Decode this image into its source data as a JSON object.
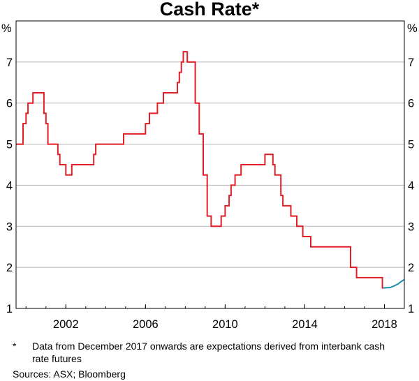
{
  "chart_data": {
    "type": "line",
    "title": "Cash Rate*",
    "ylabel_left": "%",
    "ylabel_right": "%",
    "xlim": [
      1999.5,
      2019.0
    ],
    "ylim": [
      1,
      8
    ],
    "yticks": [
      1,
      2,
      3,
      4,
      5,
      6,
      7
    ],
    "xticks": [
      2002,
      2006,
      2010,
      2014,
      2018
    ],
    "xtick_labels": [
      "2002",
      "2006",
      "2010",
      "2014",
      "2018"
    ],
    "grid": "horizontal",
    "colors": {
      "actual": "#e21e26",
      "expected": "#1c8fb0",
      "grid": "#b5b5b5"
    },
    "series": [
      {
        "name": "Cash rate",
        "style": "step",
        "x": [
          1999.5,
          1999.85,
          2000.0,
          2000.1,
          2000.2,
          2000.35,
          2000.7,
          2000.9,
          2001.0,
          2001.1,
          2001.5,
          2001.6,
          2001.7,
          2002.0,
          2002.1,
          2002.3,
          2003.4,
          2003.5,
          2004.9,
          2006.0,
          2006.2,
          2006.6,
          2006.9,
          2007.6,
          2007.7,
          2007.8,
          2007.9,
          2008.0,
          2008.1,
          2008.5,
          2008.7,
          2008.9,
          2009.1,
          2009.3,
          2009.8,
          2010.0,
          2010.2,
          2010.3,
          2010.5,
          2010.8,
          2011.0,
          2012.0,
          2012.4,
          2012.5,
          2012.8,
          2012.9,
          2013.3,
          2013.6,
          2013.9,
          2014.3,
          2016.3,
          2016.6,
          2017.9
        ],
        "y": [
          5.0,
          5.5,
          5.75,
          6.0,
          6.0,
          6.25,
          6.25,
          5.75,
          5.5,
          5.0,
          5.0,
          4.75,
          4.5,
          4.25,
          4.25,
          4.5,
          4.75,
          5.0,
          5.25,
          5.5,
          5.75,
          6.0,
          6.25,
          6.5,
          6.75,
          7.0,
          7.25,
          7.25,
          7.0,
          6.0,
          5.25,
          4.25,
          3.25,
          3.0,
          3.25,
          3.5,
          3.75,
          4.0,
          4.25,
          4.5,
          4.5,
          4.75,
          4.5,
          4.25,
          3.75,
          3.5,
          3.25,
          3.0,
          2.75,
          2.5,
          2.0,
          1.75,
          1.5
        ]
      },
      {
        "name": "Expectations",
        "style": "line",
        "x": [
          2017.95,
          2018.3,
          2018.5,
          2018.7,
          2018.85,
          2019.0
        ],
        "y": [
          1.5,
          1.51,
          1.55,
          1.6,
          1.66,
          1.7
        ]
      }
    ]
  },
  "footnote": {
    "marker": "*",
    "text": "Data from December 2017 onwards are expectations derived from interbank cash rate futures"
  },
  "sources": "Sources: ASX; Bloomberg"
}
